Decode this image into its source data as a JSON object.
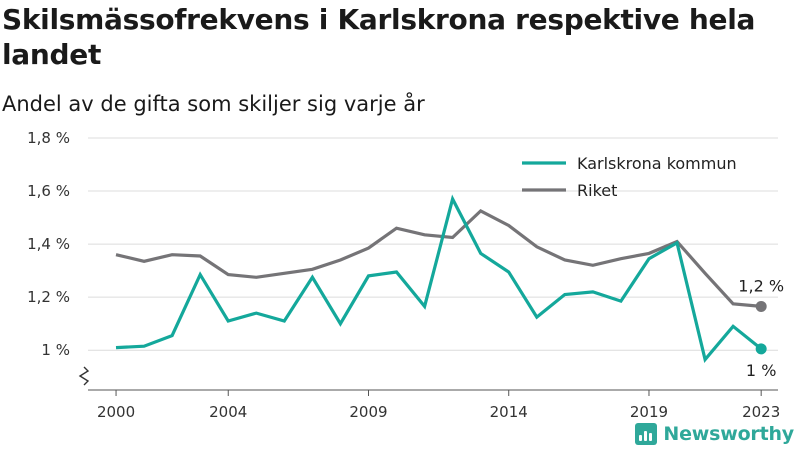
{
  "chart_data": {
    "type": "line",
    "title": "Skilsmässofrekvens i Karlskrona respektive hela landet",
    "subtitle": "Andel av de gifta som skiljer sig varje år",
    "x": [
      2000,
      2001,
      2002,
      2003,
      2004,
      2005,
      2006,
      2007,
      2008,
      2009,
      2010,
      2011,
      2012,
      2013,
      2014,
      2015,
      2016,
      2017,
      2018,
      2019,
      2020,
      2021,
      2022,
      2023
    ],
    "series": [
      {
        "name": "Karlskrona kommun",
        "color": "#14a89b",
        "values": [
          1.01,
          1.015,
          1.055,
          1.285,
          1.11,
          1.14,
          1.11,
          1.275,
          1.1,
          1.28,
          1.295,
          1.165,
          1.57,
          1.365,
          1.295,
          1.125,
          1.21,
          1.22,
          1.185,
          1.345,
          1.405,
          0.965,
          1.09,
          1.005
        ],
        "end_label": "1 %"
      },
      {
        "name": "Riket",
        "color": "#757477",
        "values": [
          1.36,
          1.335,
          1.36,
          1.355,
          1.285,
          1.275,
          1.29,
          1.305,
          1.34,
          1.385,
          1.46,
          1.435,
          1.425,
          1.525,
          1.47,
          1.39,
          1.34,
          1.32,
          1.345,
          1.365,
          1.41,
          1.29,
          1.175,
          1.165
        ],
        "end_label": "1,2 %"
      }
    ],
    "x_ticks": [
      "2000",
      "2004",
      "2009",
      "2014",
      "2019",
      "2023"
    ],
    "x_tick_values": [
      2000,
      2004,
      2009,
      2014,
      2019,
      2023
    ],
    "y_ticks": [
      "1 %",
      "1,2 %",
      "1,4 %",
      "1,6 %",
      "1,8 %"
    ],
    "y_tick_values": [
      1.0,
      1.2,
      1.4,
      1.6,
      1.8
    ],
    "ylim": [
      0.85,
      1.8
    ],
    "xlim": [
      1999.0,
      2023.6
    ],
    "axis_break": true,
    "grid": true,
    "legend_position": "top-right",
    "xlabel": "",
    "ylabel": ""
  },
  "brand": {
    "name": "Newsworthy",
    "color": "#2fa89a",
    "icon": "newsworthy-logo-icon"
  }
}
